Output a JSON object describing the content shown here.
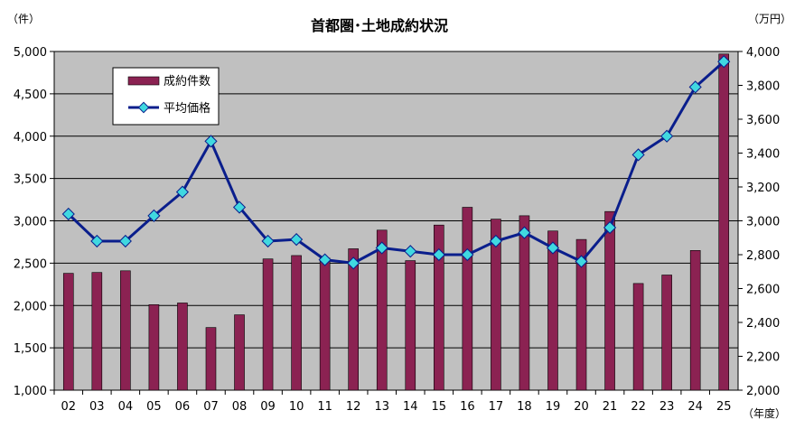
{
  "chart_data": {
    "type": "bar+line",
    "title": "首都圏･土地成約状況",
    "left_unit": "（件）",
    "right_unit": "（万円）",
    "x_unit": "（年度）",
    "categories": [
      "02",
      "03",
      "04",
      "05",
      "06",
      "07",
      "08",
      "09",
      "10",
      "11",
      "12",
      "13",
      "14",
      "15",
      "16",
      "17",
      "18",
      "19",
      "20",
      "21",
      "22",
      "23",
      "24",
      "25"
    ],
    "left_axis": {
      "min": 1000,
      "max": 5000,
      "step": 500,
      "tick_labels": [
        "1,000",
        "1,500",
        "2,000",
        "2,500",
        "3,000",
        "3,500",
        "4,000",
        "4,500",
        "5,000"
      ]
    },
    "right_axis": {
      "min": 2000,
      "max": 4000,
      "step": 200,
      "tick_labels": [
        "2,000",
        "2,200",
        "2,400",
        "2,600",
        "2,800",
        "3,000",
        "3,200",
        "3,400",
        "3,600",
        "3,800",
        "4,000"
      ]
    },
    "series": [
      {
        "name": "成約件数",
        "type": "bar",
        "axis": "left",
        "values": [
          2380,
          2390,
          2410,
          2010,
          2030,
          1740,
          1890,
          2550,
          2590,
          2560,
          2670,
          2890,
          2530,
          2950,
          3160,
          3020,
          3060,
          2880,
          2780,
          3110,
          2260,
          2360,
          2650,
          4970
        ]
      },
      {
        "name": "平均価格",
        "type": "line",
        "axis": "right",
        "values": [
          3040,
          2880,
          2880,
          3030,
          3170,
          3470,
          3080,
          2880,
          2890,
          2770,
          2750,
          2840,
          2820,
          2800,
          2800,
          2880,
          2930,
          2840,
          2760,
          2960,
          3390,
          3500,
          3790,
          3940
        ]
      }
    ],
    "colors": {
      "bar": "#8b2252",
      "line": "#0a1e8c",
      "marker": "#40d8e0",
      "plot_bg": "#c0c0c0"
    },
    "legend_position": "top-left",
    "grid": "horizontal"
  }
}
